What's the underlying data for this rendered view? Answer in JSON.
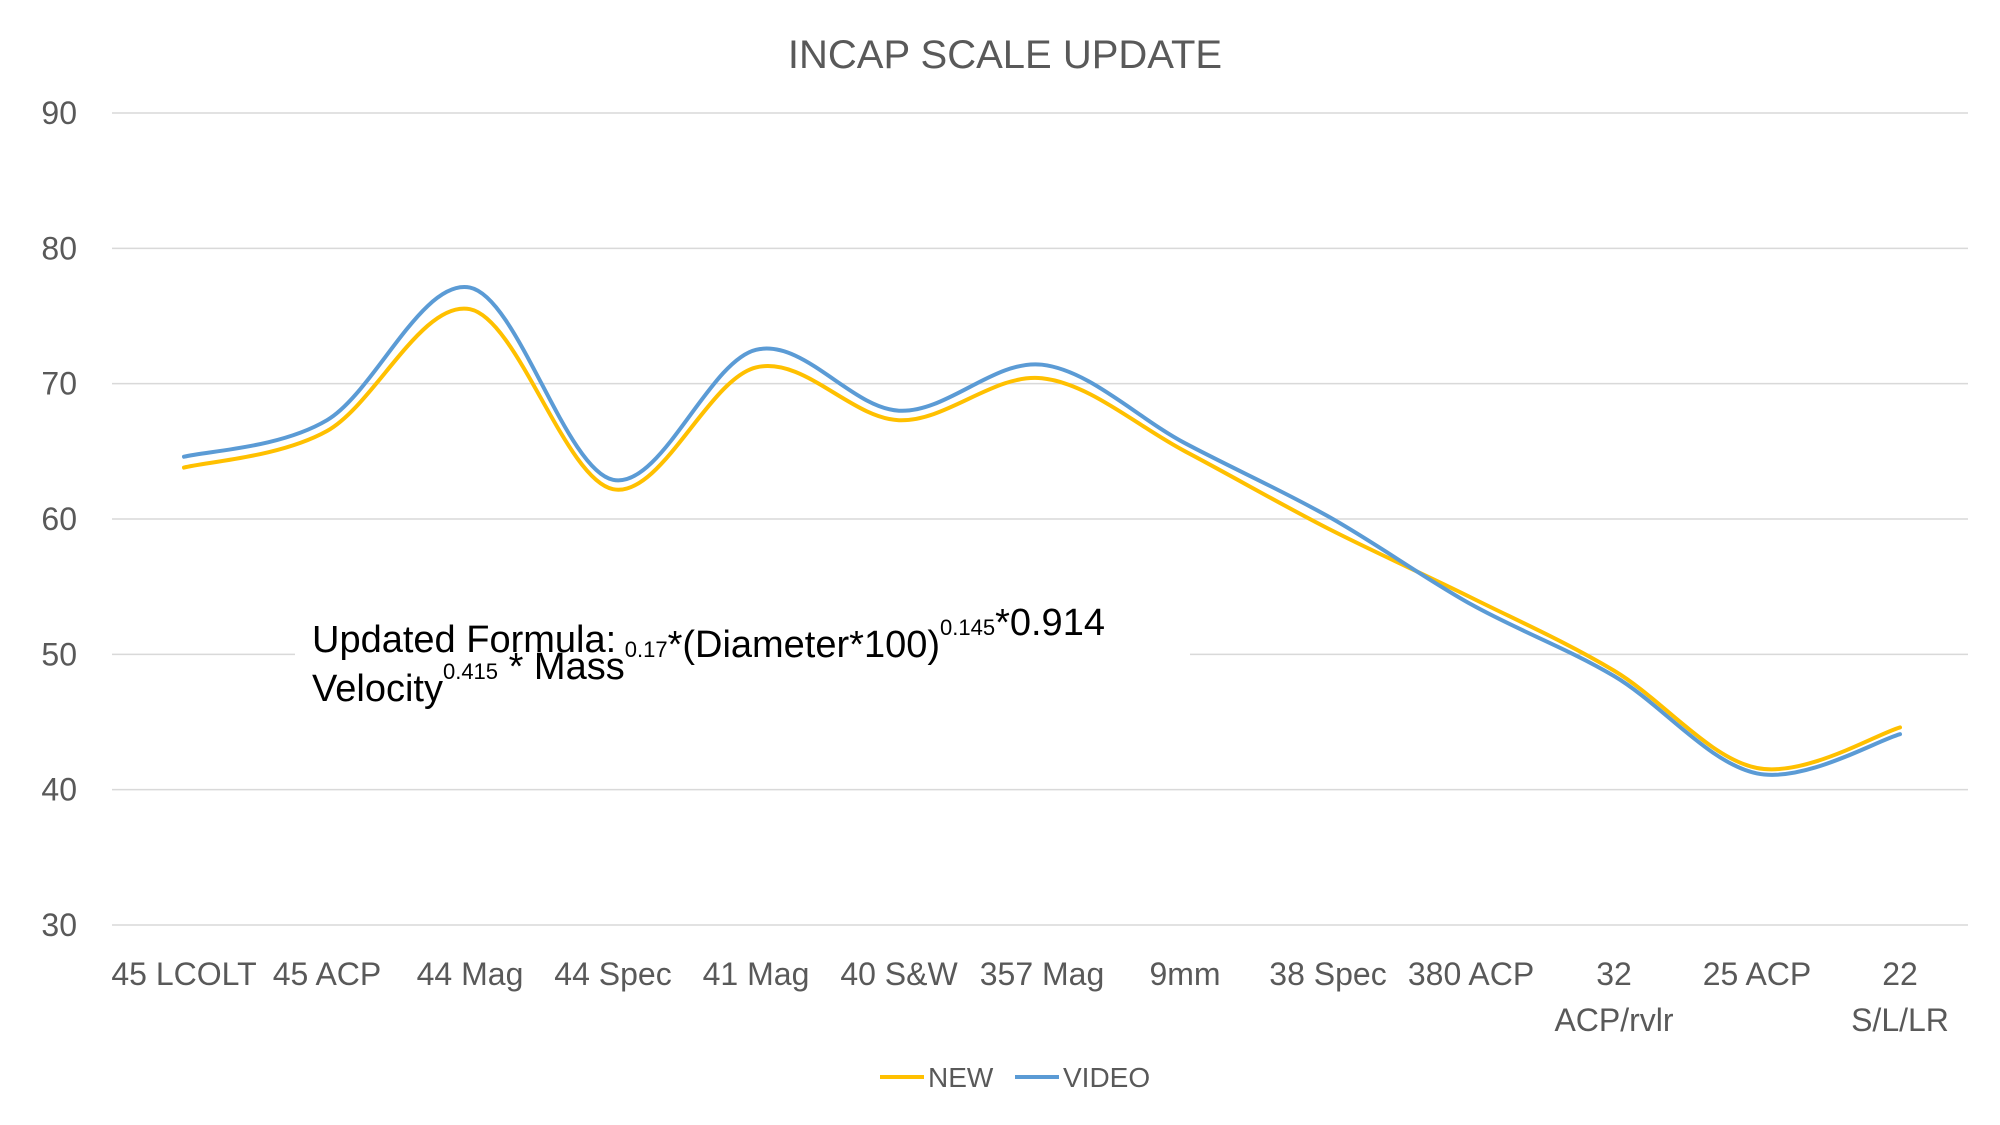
{
  "chart_data": {
    "type": "line",
    "title": "INCAP SCALE UPDATE",
    "categories": [
      [
        "45 LCOLT"
      ],
      [
        "45 ACP"
      ],
      [
        "44 Mag"
      ],
      [
        "44 Spec"
      ],
      [
        "41 Mag"
      ],
      [
        "40 S&W"
      ],
      [
        "357 Mag"
      ],
      [
        "9mm"
      ],
      [
        "38 Spec"
      ],
      [
        "380 ACP"
      ],
      [
        "32",
        "ACP/rvlr"
      ],
      [
        "25 ACP"
      ],
      [
        "22",
        "S/L/LR"
      ]
    ],
    "ylim": [
      30,
      90
    ],
    "yticks": [
      "30",
      "40",
      "50",
      "60",
      "70",
      "80",
      "90"
    ],
    "grid": true,
    "legend": "bottom",
    "series": [
      {
        "name": "NEW",
        "color": "#ffc000",
        "values": [
          63.8,
          66.5,
          75.5,
          62.2,
          71.2,
          67.3,
          70.4,
          65.0,
          59.3,
          54.2,
          48.8,
          41.6,
          44.6
        ]
      },
      {
        "name": "VIDEO",
        "color": "#5b9bd5",
        "values": [
          64.6,
          67.3,
          77.1,
          62.9,
          72.5,
          68.0,
          71.4,
          65.6,
          60.2,
          53.7,
          48.4,
          41.2,
          44.1
        ]
      }
    ]
  },
  "annotation": {
    "heading": "Updated Formula:",
    "parts": [
      {
        "text": "Velocity",
        "sup": "0.415"
      },
      {
        "text": " * Mass",
        "sup": "0.17"
      },
      {
        "text": "*(Diameter*100)",
        "sup": "0.145"
      },
      {
        "text": "*0.914",
        "sup": ""
      }
    ]
  }
}
